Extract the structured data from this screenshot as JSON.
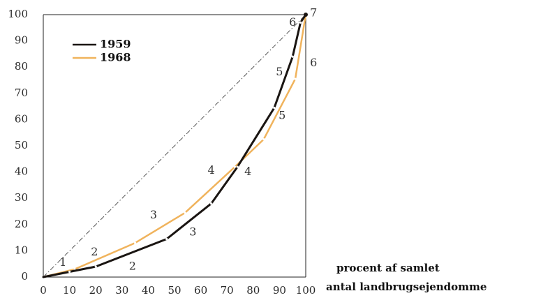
{
  "chart_data": {
    "type": "line",
    "xlabel_lines": [
      "procent af samlet",
      "antal landbrugsejendomme"
    ],
    "ylabel": "",
    "xlim": [
      0,
      100
    ],
    "ylim": [
      0,
      100
    ],
    "x_ticks": [
      "0",
      "10",
      "20",
      "30",
      "40",
      "50",
      "60",
      "70",
      "80",
      "90",
      "100"
    ],
    "y_ticks": [
      "0",
      "10",
      "20",
      "30",
      "40",
      "50",
      "60",
      "70",
      "80",
      "90",
      "100"
    ],
    "grid": false,
    "legend_position": "top-left",
    "equality_line": {
      "points": [
        [
          0,
          0
        ],
        [
          100,
          100
        ]
      ],
      "style": "dash-dot"
    },
    "series": [
      {
        "name": "1959",
        "color": "#1a1512",
        "points": [
          [
            0,
            0
          ],
          [
            10,
            2
          ],
          [
            20,
            4
          ],
          [
            47,
            14.5
          ],
          [
            64,
            28
          ],
          [
            74,
            42
          ],
          [
            88,
            64.5
          ],
          [
            95,
            84
          ],
          [
            98,
            97
          ],
          [
            100,
            100
          ]
        ],
        "segment_labels": [
          {
            "text": "1",
            "x": 7.5,
            "y": 5.5
          },
          {
            "text": "2",
            "x": 34,
            "y": 4
          },
          {
            "text": "3",
            "x": 57,
            "y": 17
          },
          {
            "text": "4",
            "x": 78,
            "y": 40
          },
          {
            "text": "5",
            "x": 90,
            "y": 78
          },
          {
            "text": "6",
            "x": 95,
            "y": 97
          },
          {
            "text": "7",
            "x": 103,
            "y": 100.5
          }
        ]
      },
      {
        "name": "1968",
        "color": "#f0b35c",
        "points": [
          [
            0,
            0
          ],
          [
            12,
            3
          ],
          [
            35,
            13
          ],
          [
            54,
            24.5
          ],
          [
            73,
            42
          ],
          [
            84,
            52.5
          ],
          [
            96,
            75.5
          ],
          [
            100,
            100
          ]
        ],
        "segment_labels": [
          {
            "text": "2",
            "x": 19.5,
            "y": 9.5
          },
          {
            "text": "3",
            "x": 42,
            "y": 23.5
          },
          {
            "text": "4",
            "x": 64,
            "y": 40.5
          },
          {
            "text": "5",
            "x": 91,
            "y": 61.5
          },
          {
            "text": "6",
            "x": 103,
            "y": 81.5
          }
        ]
      }
    ]
  }
}
